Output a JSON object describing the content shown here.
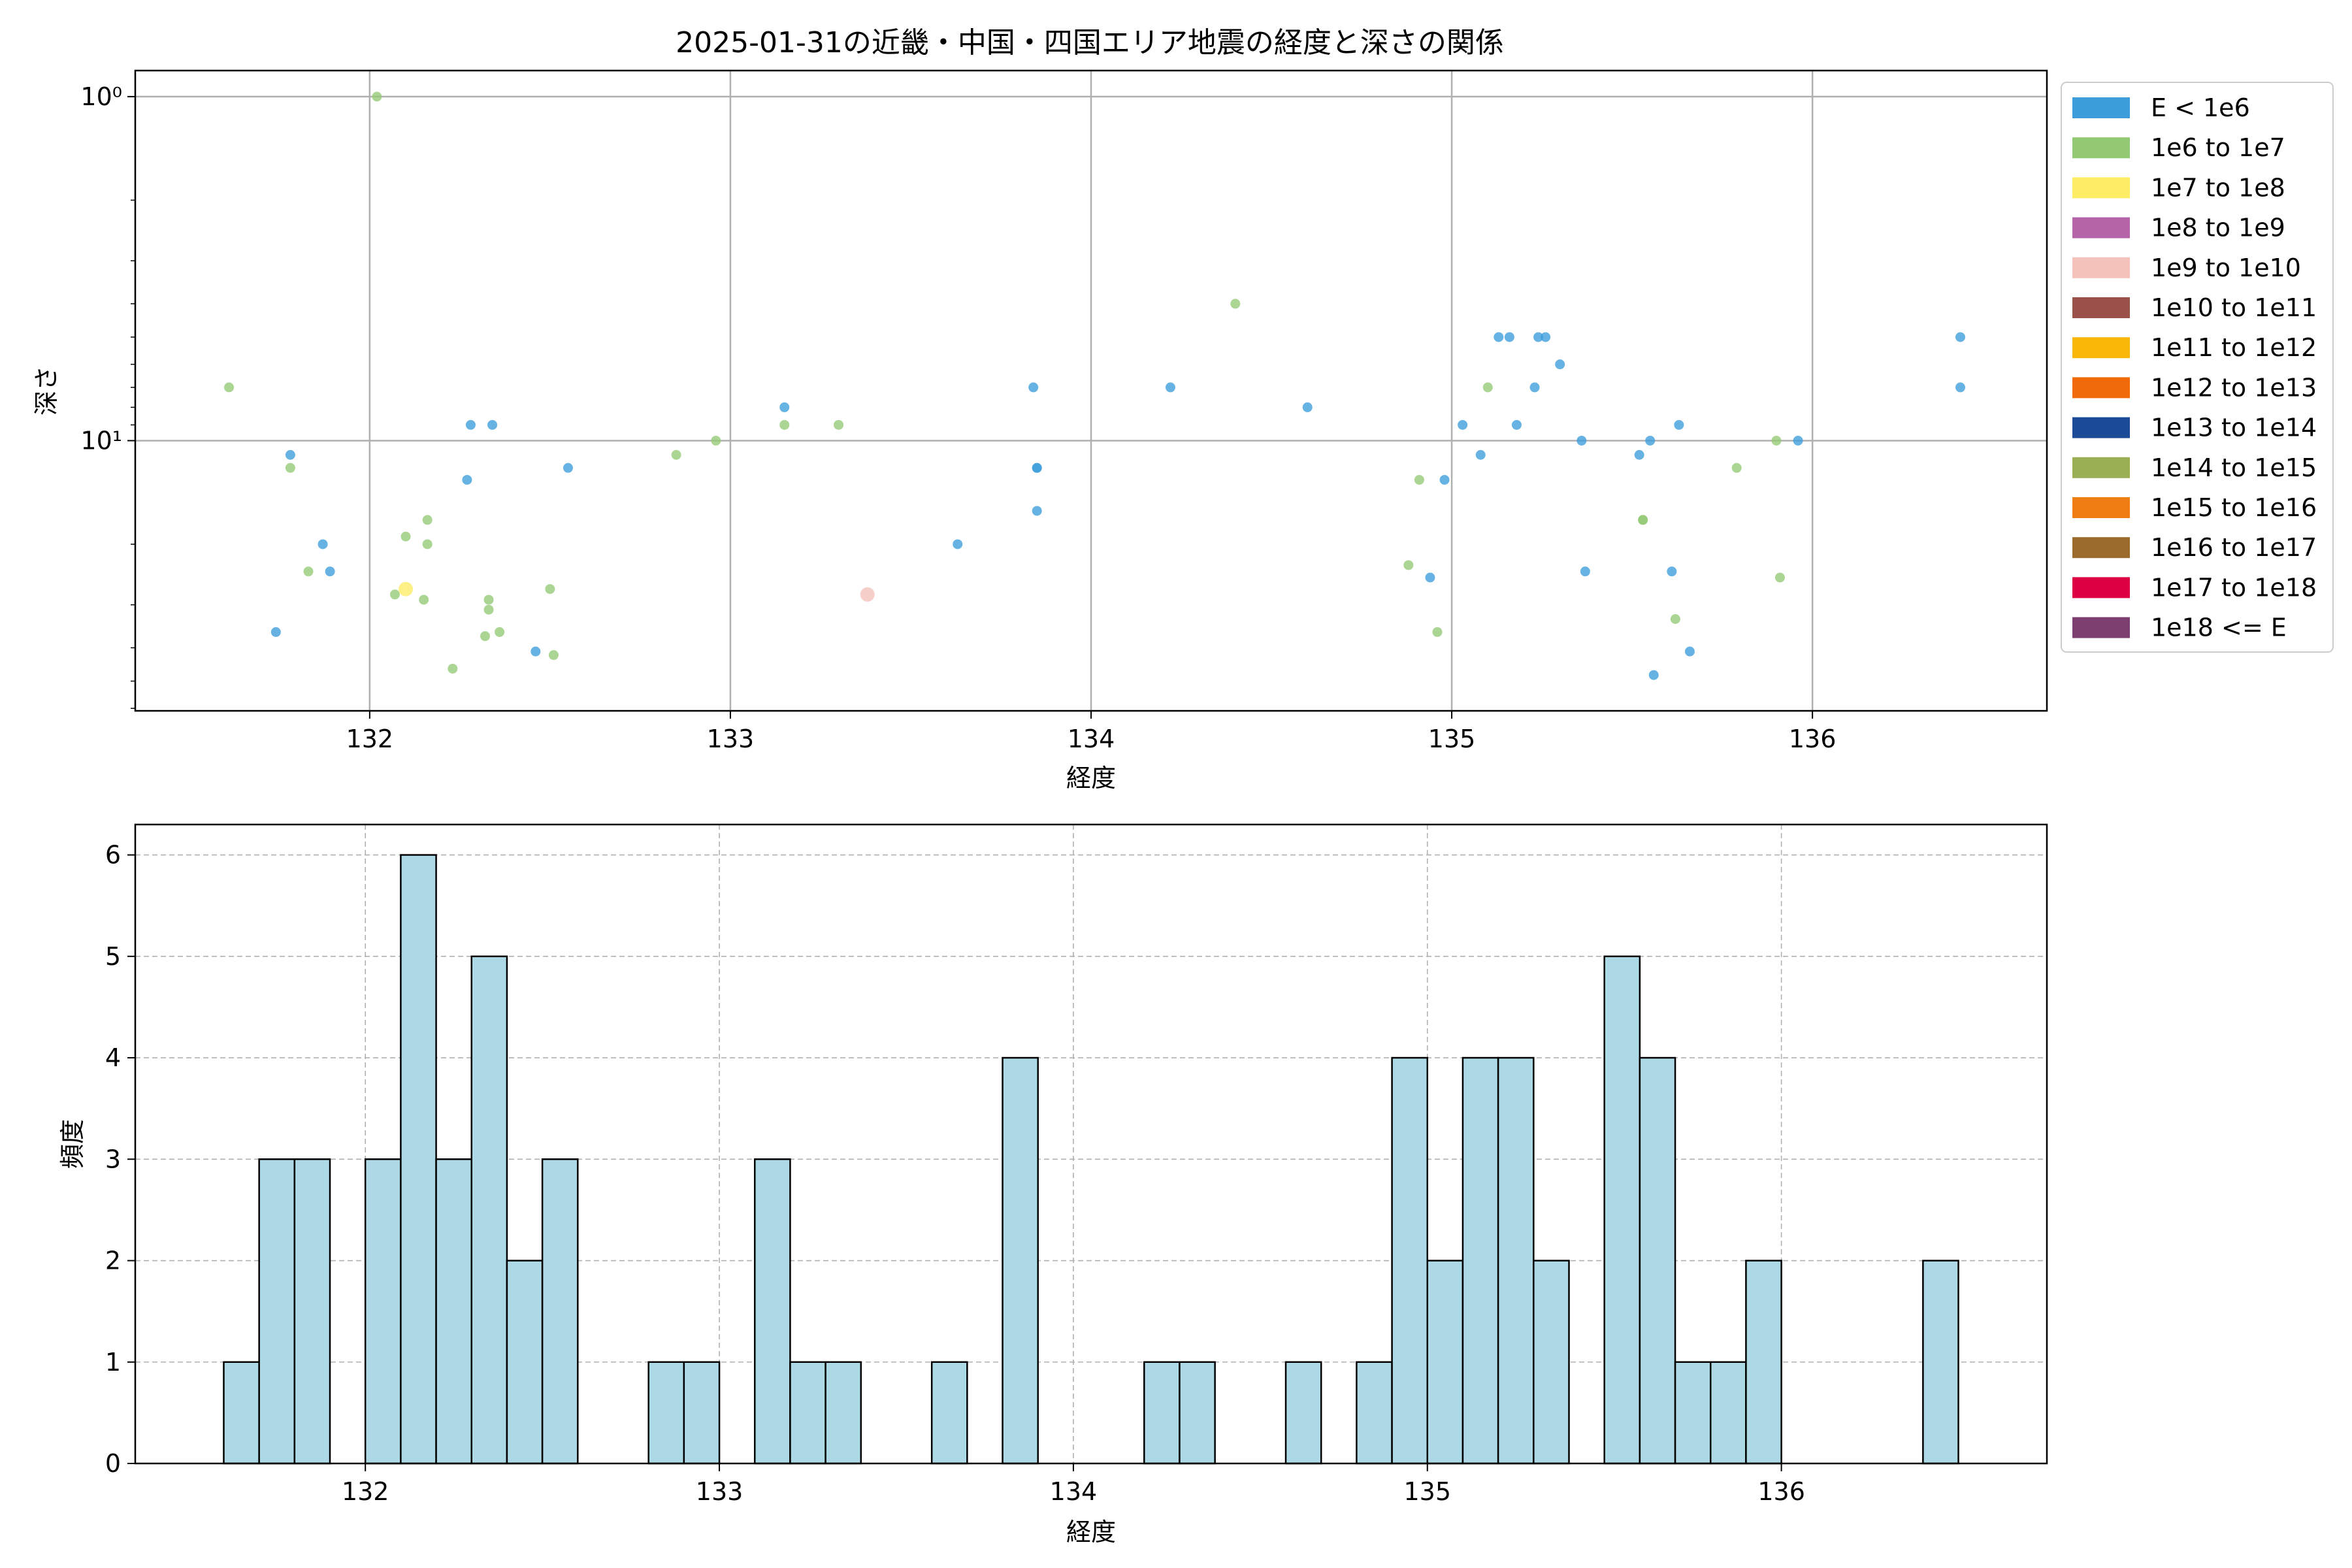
{
  "chart_data": [
    {
      "type": "scatter",
      "title": "2025-01-31の近畿・中国・四国エリア地震の経度と深さの関係",
      "xlabel": "経度",
      "ylabel": "深さ",
      "xlim": [
        131.35,
        136.65
      ],
      "ylim": [
        61,
        0.84
      ],
      "yscale": "log",
      "y_inverted": true,
      "x_ticks": [
        132,
        133,
        134,
        135,
        136
      ],
      "x_tick_labels": [
        "132",
        "133",
        "134",
        "135",
        "136"
      ],
      "y_ticks": [
        1,
        10
      ],
      "y_tick_labels": [
        "10⁰",
        "10¹"
      ],
      "grid": true,
      "legend_position": "outside-right-top",
      "legend": [
        {
          "label": "E < 1e6",
          "color": "#3b9edb"
        },
        {
          "label": "1e6 to 1e7",
          "color": "#94c973"
        },
        {
          "label": "1e7 to 1e8",
          "color": "#fdec64"
        },
        {
          "label": "1e8 to 1e9",
          "color": "#b565a7"
        },
        {
          "label": "1e9 to 1e10",
          "color": "#f5c1bb"
        },
        {
          "label": "1e10 to 1e11",
          "color": "#9a5149"
        },
        {
          "label": "1e11 to 1e12",
          "color": "#fbb707"
        },
        {
          "label": "1e12 to 1e13",
          "color": "#f06a09"
        },
        {
          "label": "1e13 to 1e14",
          "color": "#1b4a96"
        },
        {
          "label": "1e14 to 1e15",
          "color": "#9aae53"
        },
        {
          "label": "1e15 to 1e16",
          "color": "#ef7d14"
        },
        {
          "label": "1e16 to 1e17",
          "color": "#9a6b2d"
        },
        {
          "label": "1e17 to 1e18",
          "color": "#dd0043"
        },
        {
          "label": "1e18 <= E",
          "color": "#7c3f6f"
        }
      ],
      "series": [
        {
          "name": "E < 1e6",
          "color": "#3b9edb",
          "points": [
            [
              131.74,
              36
            ],
            [
              131.78,
              11
            ],
            [
              131.87,
              20
            ],
            [
              131.89,
              24
            ],
            [
              132.27,
              13
            ],
            [
              132.28,
              9
            ],
            [
              132.34,
              9
            ],
            [
              132.46,
              41
            ],
            [
              132.55,
              12
            ],
            [
              133.15,
              8
            ],
            [
              133.63,
              20
            ],
            [
              133.84,
              7
            ],
            [
              133.85,
              12
            ],
            [
              133.85,
              12
            ],
            [
              133.85,
              16
            ],
            [
              134.22,
              7
            ],
            [
              134.6,
              8
            ],
            [
              134.94,
              25
            ],
            [
              134.98,
              13
            ],
            [
              135.03,
              9
            ],
            [
              135.08,
              11
            ],
            [
              135.13,
              5
            ],
            [
              135.16,
              5
            ],
            [
              135.18,
              9
            ],
            [
              135.23,
              7
            ],
            [
              135.24,
              5
            ],
            [
              135.26,
              5
            ],
            [
              135.3,
              6
            ],
            [
              135.36,
              10
            ],
            [
              135.37,
              24
            ],
            [
              135.52,
              11
            ],
            [
              135.55,
              10
            ],
            [
              135.56,
              48
            ],
            [
              135.61,
              24
            ],
            [
              135.63,
              9
            ],
            [
              135.66,
              41
            ],
            [
              135.96,
              10
            ],
            [
              136.41,
              5
            ],
            [
              136.41,
              7
            ]
          ]
        },
        {
          "name": "1e6 to 1e7",
          "color": "#94c973",
          "points": [
            [
              131.61,
              7
            ],
            [
              131.78,
              12
            ],
            [
              131.83,
              24
            ],
            [
              132.02,
              1
            ],
            [
              132.07,
              28
            ],
            [
              132.1,
              19
            ],
            [
              132.15,
              29
            ],
            [
              132.16,
              17
            ],
            [
              132.16,
              20
            ],
            [
              132.23,
              46
            ],
            [
              132.32,
              37
            ],
            [
              132.33,
              31
            ],
            [
              132.33,
              29
            ],
            [
              132.36,
              36
            ],
            [
              132.5,
              27
            ],
            [
              132.51,
              42
            ],
            [
              132.85,
              11
            ],
            [
              132.96,
              10
            ],
            [
              133.15,
              9
            ],
            [
              133.3,
              9
            ],
            [
              134.4,
              4
            ],
            [
              134.88,
              23
            ],
            [
              134.91,
              13
            ],
            [
              134.96,
              36
            ],
            [
              135.1,
              7
            ],
            [
              135.53,
              17
            ],
            [
              135.53,
              17
            ],
            [
              135.62,
              33
            ],
            [
              135.79,
              12
            ],
            [
              135.9,
              10
            ],
            [
              135.91,
              25
            ]
          ]
        },
        {
          "name": "1e7 to 1e8",
          "color": "#fdec64",
          "points": [
            [
              132.1,
              27
            ]
          ]
        },
        {
          "name": "1e9 to 1e10",
          "color": "#f5c1bb",
          "points": [
            [
              133.38,
              28
            ]
          ]
        }
      ]
    },
    {
      "type": "bar",
      "subtype": "histogram",
      "xlabel": "経度",
      "ylabel": "頻度",
      "xlim": [
        131.35,
        136.75
      ],
      "ylim": [
        0,
        6.3
      ],
      "x_ticks": [
        132,
        133,
        134,
        135,
        136
      ],
      "x_tick_labels": [
        "132",
        "133",
        "134",
        "135",
        "136"
      ],
      "y_ticks": [
        0,
        1,
        2,
        3,
        4,
        5,
        6
      ],
      "y_tick_labels": [
        "0",
        "1",
        "2",
        "3",
        "4",
        "5",
        "6"
      ],
      "grid": true,
      "bar_color": "#add8e6",
      "bins": [
        {
          "x0": 131.6,
          "x1": 131.7,
          "count": 1
        },
        {
          "x0": 131.7,
          "x1": 131.8,
          "count": 3
        },
        {
          "x0": 131.8,
          "x1": 131.9,
          "count": 3
        },
        {
          "x0": 132.0,
          "x1": 132.1,
          "count": 3
        },
        {
          "x0": 132.1,
          "x1": 132.2,
          "count": 6
        },
        {
          "x0": 132.2,
          "x1": 132.3,
          "count": 3
        },
        {
          "x0": 132.3,
          "x1": 132.4,
          "count": 5
        },
        {
          "x0": 132.4,
          "x1": 132.5,
          "count": 2
        },
        {
          "x0": 132.5,
          "x1": 132.6,
          "count": 3
        },
        {
          "x0": 132.8,
          "x1": 132.9,
          "count": 1
        },
        {
          "x0": 132.9,
          "x1": 133.0,
          "count": 1
        },
        {
          "x0": 133.1,
          "x1": 133.2,
          "count": 3
        },
        {
          "x0": 133.2,
          "x1": 133.3,
          "count": 1
        },
        {
          "x0": 133.3,
          "x1": 133.4,
          "count": 1
        },
        {
          "x0": 133.6,
          "x1": 133.7,
          "count": 1
        },
        {
          "x0": 133.8,
          "x1": 133.9,
          "count": 4
        },
        {
          "x0": 134.2,
          "x1": 134.3,
          "count": 1
        },
        {
          "x0": 134.3,
          "x1": 134.4,
          "count": 1
        },
        {
          "x0": 134.6,
          "x1": 134.7,
          "count": 1
        },
        {
          "x0": 134.8,
          "x1": 134.9,
          "count": 1
        },
        {
          "x0": 134.9,
          "x1": 135.0,
          "count": 4
        },
        {
          "x0": 135.0,
          "x1": 135.1,
          "count": 2
        },
        {
          "x0": 135.1,
          "x1": 135.2,
          "count": 4
        },
        {
          "x0": 135.2,
          "x1": 135.3,
          "count": 4
        },
        {
          "x0": 135.3,
          "x1": 135.4,
          "count": 2
        },
        {
          "x0": 135.5,
          "x1": 135.6,
          "count": 5
        },
        {
          "x0": 135.6,
          "x1": 135.7,
          "count": 4
        },
        {
          "x0": 135.7,
          "x1": 135.8,
          "count": 1
        },
        {
          "x0": 135.8,
          "x1": 135.9,
          "count": 1
        },
        {
          "x0": 135.9,
          "x1": 136.0,
          "count": 2
        },
        {
          "x0": 136.4,
          "x1": 136.5,
          "count": 2
        }
      ]
    }
  ]
}
